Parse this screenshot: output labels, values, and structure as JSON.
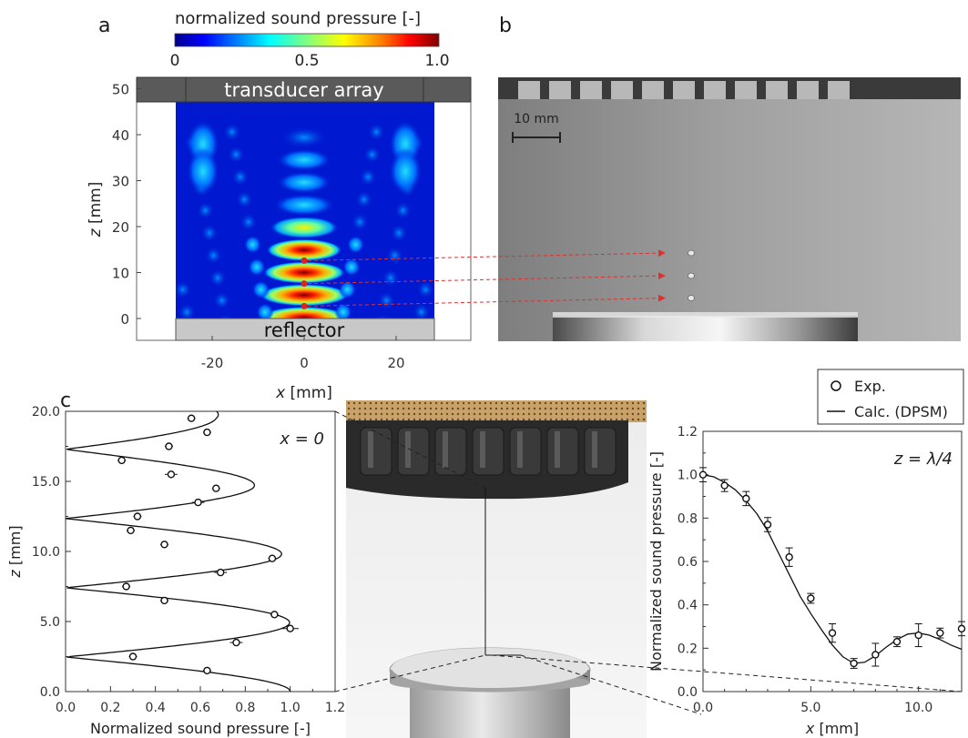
{
  "panels": {
    "a": {
      "letter": "a"
    },
    "b": {
      "letter": "b"
    },
    "c": {
      "letter": "c"
    }
  },
  "colorbar": {
    "title": "normalized sound pressure [-]",
    "ticks": [
      "0",
      "0.5",
      "1.0"
    ],
    "colors": [
      "#00008f",
      "#0000ff",
      "#0080ff",
      "#00ffff",
      "#80ff80",
      "#ffff00",
      "#ff8000",
      "#ff0000",
      "#800000"
    ]
  },
  "field_map": {
    "transducer_label": "transducer array",
    "reflector_label": "reflector",
    "ylabel_var": "z",
    "ylabel_unit": " [mm]",
    "xlabel_var": "x",
    "xlabel_unit": " [mm]",
    "x_ticks": [
      "-20",
      "0",
      "20"
    ],
    "z_ticks": [
      "0",
      "10",
      "20",
      "30",
      "40",
      "50"
    ],
    "node_z_mm": [
      2.7,
      7.6,
      12.6
    ]
  },
  "photo_b": {
    "scalebar_label": "10 mm",
    "particle_z_mm": [
      2.7,
      7.6,
      12.6
    ]
  },
  "chart_data": [
    {
      "type": "line",
      "panel": "c-left",
      "annotation": "x = 0",
      "xlabel": "Normalized sound pressure [-]",
      "ylabel_var": "z",
      "ylabel_unit": " [mm]",
      "xlim": [
        0,
        1.2
      ],
      "ylim": [
        0,
        20
      ],
      "x_ticks": [
        "0.0",
        "0.2",
        "0.4",
        "0.6",
        "0.8",
        "1.0",
        "1.2"
      ],
      "y_ticks": [
        "0.0",
        "5.0",
        "10.0",
        "15.0",
        "20.0"
      ],
      "series": [
        {
          "name": "Exp.",
          "style": "markers",
          "points": [
            {
              "x": 0.63,
              "z": 1.5,
              "err": 0.01
            },
            {
              "x": 0.3,
              "z": 2.5,
              "err": 0.01
            },
            {
              "x": 0.76,
              "z": 3.5,
              "err": 0.02
            },
            {
              "x": 1.0,
              "z": 4.5,
              "err": 0.03
            },
            {
              "x": 0.93,
              "z": 5.5,
              "err": 0.01
            },
            {
              "x": 0.44,
              "z": 6.5,
              "err": 0.01
            },
            {
              "x": 0.27,
              "z": 7.5,
              "err": 0.01
            },
            {
              "x": 0.69,
              "z": 8.5,
              "err": 0.02
            },
            {
              "x": 0.92,
              "z": 9.5,
              "err": 0.01
            },
            {
              "x": 0.44,
              "z": 10.5,
              "err": 0.01
            },
            {
              "x": 0.29,
              "z": 11.5,
              "err": 0.01
            },
            {
              "x": 0.32,
              "z": 12.5,
              "err": 0.01
            },
            {
              "x": 0.59,
              "z": 13.5,
              "err": 0.02
            },
            {
              "x": 0.67,
              "z": 14.5,
              "err": 0.01
            },
            {
              "x": 0.47,
              "z": 15.5,
              "err": 0.02
            },
            {
              "x": 0.25,
              "z": 16.5,
              "err": 0.01
            },
            {
              "x": 0.46,
              "z": 17.5,
              "err": 0.01
            },
            {
              "x": 0.63,
              "z": 18.5,
              "err": 0.01
            },
            {
              "x": 0.56,
              "z": 19.5,
              "err": 0.01
            }
          ]
        },
        {
          "name": "Calc. (DPSM)",
          "style": "line",
          "model": {
            "half_wavelength_mm": 4.94,
            "phase_shift_mm": 0.0,
            "envelope_z_mm": [
              0,
              4.5,
              9.5,
              14.5,
              19.5
            ],
            "envelope_amp": [
              1.0,
              1.0,
              0.97,
              0.85,
              0.68
            ]
          }
        }
      ]
    },
    {
      "type": "line",
      "panel": "c-right",
      "annotation_var": "z",
      "annotation_mid": " = ",
      "annotation_val": "λ/4",
      "xlabel_var": "x",
      "xlabel_unit": " [mm]",
      "ylabel": "Normalized sound pressure [-]",
      "xlim": [
        0,
        12
      ],
      "ylim": [
        0,
        1.2
      ],
      "x_ticks": [
        "0.0",
        "5.0",
        "10.0"
      ],
      "y_ticks": [
        "0.0",
        "0.2",
        "0.4",
        "0.6",
        "0.8",
        "1.0",
        "1.2"
      ],
      "legend": {
        "placement": "top-right",
        "entries": [
          "Exp.",
          "Calc. (DPSM)"
        ]
      },
      "series": [
        {
          "name": "Exp.",
          "style": "markers",
          "points": [
            {
              "x": 0,
              "y": 1.0,
              "err": 0.02
            },
            {
              "x": 1,
              "y": 0.95,
              "err": 0.015
            },
            {
              "x": 2,
              "y": 0.89,
              "err": 0.02
            },
            {
              "x": 3,
              "y": 0.77,
              "err": 0.02
            },
            {
              "x": 4,
              "y": 0.62,
              "err": 0.03
            },
            {
              "x": 5,
              "y": 0.43,
              "err": 0.01
            },
            {
              "x": 6,
              "y": 0.27,
              "err": 0.03
            },
            {
              "x": 7,
              "y": 0.13,
              "err": 0.01
            },
            {
              "x": 8,
              "y": 0.17,
              "err": 0.04
            },
            {
              "x": 9,
              "y": 0.23,
              "err": 0.01
            },
            {
              "x": 10,
              "y": 0.26,
              "err": 0.04
            },
            {
              "x": 11,
              "y": 0.27,
              "err": 0.01
            },
            {
              "x": 12,
              "y": 0.29,
              "err": 0.02
            }
          ]
        },
        {
          "name": "Calc. (DPSM)",
          "style": "line",
          "points": [
            [
              0,
              1.0
            ],
            [
              0.5,
              0.99
            ],
            [
              1,
              0.965
            ],
            [
              1.5,
              0.93
            ],
            [
              2,
              0.88
            ],
            [
              2.5,
              0.82
            ],
            [
              3,
              0.74
            ],
            [
              3.5,
              0.64
            ],
            [
              4,
              0.54
            ],
            [
              4.5,
              0.44
            ],
            [
              5,
              0.36
            ],
            [
              5.5,
              0.285
            ],
            [
              6,
              0.215
            ],
            [
              6.5,
              0.16
            ],
            [
              7,
              0.13
            ],
            [
              7.5,
              0.135
            ],
            [
              8,
              0.165
            ],
            [
              8.5,
              0.205
            ],
            [
              9,
              0.24
            ],
            [
              9.5,
              0.265
            ],
            [
              10,
              0.27
            ],
            [
              10.5,
              0.26
            ],
            [
              11,
              0.24
            ],
            [
              11.5,
              0.215
            ],
            [
              12,
              0.195
            ]
          ]
        }
      ]
    }
  ]
}
